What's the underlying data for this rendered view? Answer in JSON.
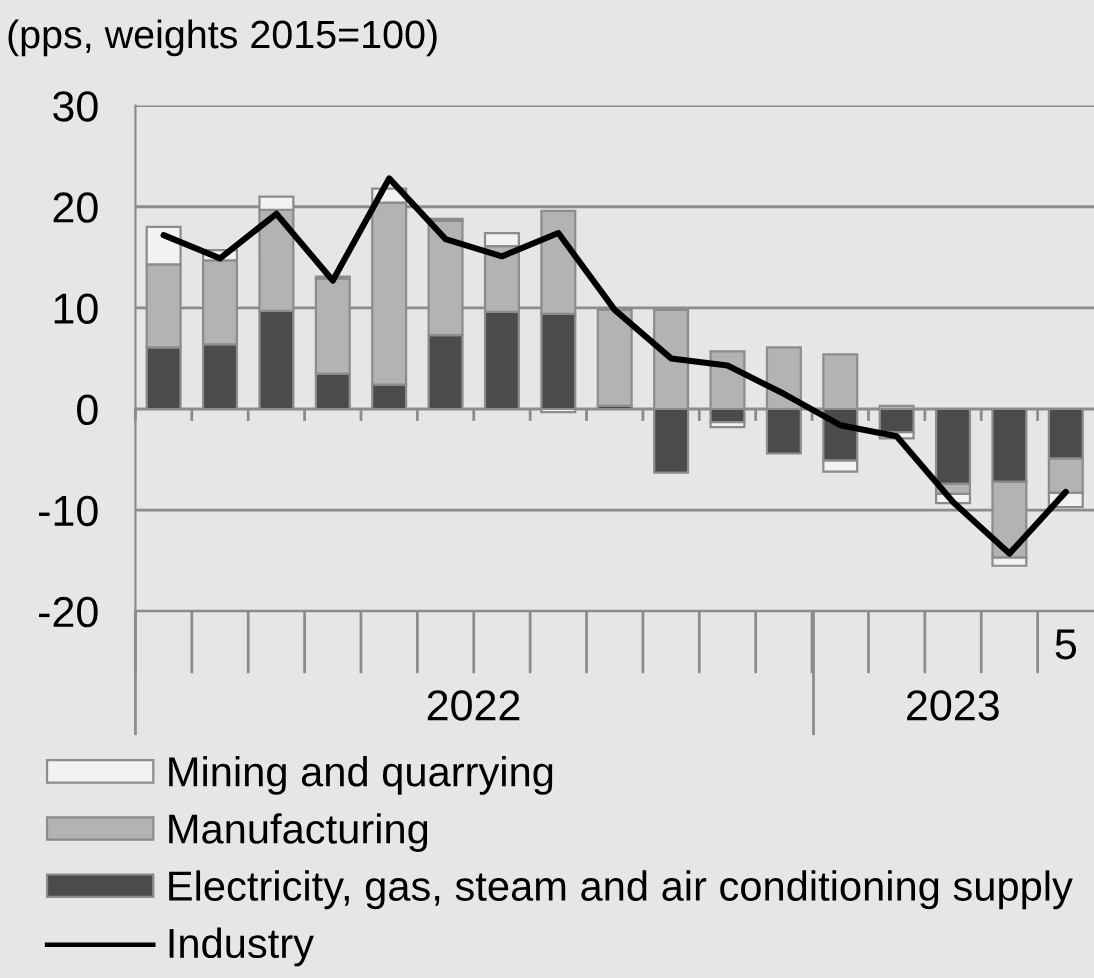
{
  "chart_data": {
    "type": "bar",
    "ylabel": "(pps, weights 2015=100)",
    "stacked": true,
    "categories": [
      null,
      null,
      null,
      null,
      null,
      null,
      null,
      null,
      null,
      null,
      null,
      null,
      null,
      null,
      null,
      null,
      "5"
    ],
    "series": [
      {
        "name": "Electricity, gas, steam and air conditioning supply",
        "color": "#4b4b4b",
        "values": [
          6.1,
          6.4,
          9.7,
          3.5,
          2.4,
          7.3,
          9.6,
          9.4,
          0.3,
          -6.3,
          -1.3,
          -4.4,
          -5.1,
          -2.3,
          -7.4,
          -7.2,
          -4.9
        ]
      },
      {
        "name": "Manufacturing",
        "color": "#b3b3b3",
        "values": [
          8.2,
          8.3,
          10.0,
          9.4,
          18.0,
          11.3,
          6.5,
          10.2,
          9.5,
          9.8,
          5.7,
          6.1,
          5.4,
          0.3,
          -1.0,
          -7.5,
          -3.4
        ]
      },
      {
        "name": "Mining and quarrying",
        "color": "#f2f2f2",
        "values": [
          3.7,
          1.0,
          1.3,
          0.2,
          1.4,
          0.2,
          1.3,
          -0.3,
          null,
          null,
          -0.5,
          null,
          -1.1,
          -0.6,
          -0.9,
          -0.8,
          -1.4
        ]
      },
      {
        "name": "Industry",
        "type": "line",
        "color": "#000000",
        "values": [
          17.2,
          14.9,
          19.3,
          12.7,
          22.8,
          16.8,
          15.1,
          17.4,
          9.8,
          5.0,
          4.3,
          1.5,
          -1.6,
          -2.7,
          -9.2,
          -14.3,
          -8.2
        ]
      }
    ],
    "ylim": [
      -20,
      30
    ],
    "yticks": [
      -20,
      -10,
      0,
      10,
      20,
      30
    ],
    "x2lim": [
      "2021-12-16",
      "2023-05-16"
    ],
    "x2ticks": [
      {
        "value": "2021-12-16",
        "label": null
      },
      {
        "value": "2022-06-16",
        "label": "2022"
      },
      {
        "value": "2022-12-16",
        "label": null
      },
      {
        "value": "2023-03-01",
        "label": "2023"
      }
    ],
    "grid": "y",
    "legend": "bottom"
  }
}
